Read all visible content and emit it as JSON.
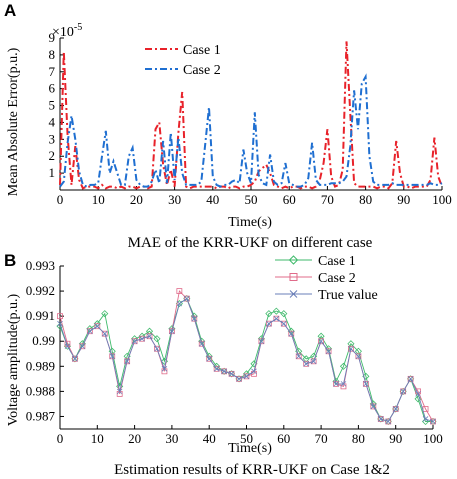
{
  "chart_data": [
    {
      "panel": "A",
      "type": "line",
      "title": "",
      "caption": "MAE of the KRR-UKF  on different case",
      "xlabel": "Time(s)",
      "ylabel": "Mean Absolute Error(p.u.)",
      "y_exponent_label": "×10",
      "y_exponent": "-5",
      "xlim": [
        0,
        100
      ],
      "ylim": [
        0,
        9
      ],
      "xticks": [
        "0",
        "10",
        "20",
        "30",
        "40",
        "50",
        "60",
        "70",
        "80",
        "90",
        "100"
      ],
      "yticks": [
        "1",
        "2",
        "3",
        "4",
        "5",
        "6",
        "7",
        "8",
        "9"
      ],
      "legend_position": "top-center",
      "series": [
        {
          "name": "Case 1",
          "color": "#e8222a",
          "style": "dash-dot",
          "x": [
            0,
            1,
            2,
            3,
            4,
            5,
            6,
            7,
            8,
            9,
            10,
            11,
            12,
            13,
            14,
            15,
            16,
            17,
            18,
            19,
            20,
            21,
            22,
            23,
            24,
            25,
            26,
            27,
            28,
            29,
            30,
            31,
            32,
            33,
            34,
            35,
            36,
            37,
            38,
            39,
            40,
            41,
            42,
            43,
            44,
            45,
            46,
            47,
            48,
            49,
            50,
            51,
            52,
            53,
            54,
            55,
            56,
            57,
            58,
            59,
            60,
            61,
            62,
            63,
            64,
            65,
            66,
            67,
            68,
            69,
            70,
            71,
            72,
            73,
            74,
            75,
            76,
            77,
            78,
            79,
            80,
            81,
            82,
            83,
            84,
            85,
            86,
            87,
            88,
            89,
            90,
            91,
            92,
            93,
            94,
            95,
            96,
            97,
            98,
            99,
            100
          ],
          "values": [
            0.3,
            8.2,
            3.2,
            0.3,
            2.6,
            0.6,
            0.1,
            0.2,
            0.2,
            0.2,
            0.1,
            0.3,
            0.1,
            0.2,
            0.2,
            0.1,
            0.2,
            0.1,
            0.2,
            0.2,
            0.1,
            0.2,
            0.2,
            0.1,
            0.2,
            3.6,
            4.0,
            1.5,
            0.3,
            1.2,
            0.2,
            3.4,
            5.8,
            0.2,
            0.1,
            0.2,
            0.2,
            0.2,
            0.2,
            0.2,
            0.2,
            0.1,
            0.2,
            0.2,
            0.1,
            0.2,
            0.2,
            0.1,
            0.2,
            0.2,
            0.3,
            0.5,
            1.1,
            1.3,
            1.5,
            1.0,
            0.3,
            0.2,
            0.1,
            0.2,
            0.1,
            0.2,
            0.2,
            0.1,
            0.2,
            0.2,
            0.1,
            0.2,
            0.6,
            1.6,
            3.6,
            0.8,
            0.2,
            0.3,
            1.2,
            8.8,
            4.5,
            0.4,
            0.2,
            0.2,
            0.2,
            0.2,
            0.2,
            0.1,
            0.2,
            0.2,
            0.1,
            0.4,
            2.9,
            1.0,
            0.2,
            0.2,
            0.1,
            0.2,
            0.2,
            0.2,
            0.2,
            0.6,
            3.1,
            0.8,
            0.2
          ]
        },
        {
          "name": "Case 2",
          "color": "#1f6fd1",
          "style": "dash-dot",
          "x": [
            0,
            1,
            2,
            3,
            4,
            5,
            6,
            7,
            8,
            9,
            10,
            11,
            12,
            13,
            14,
            15,
            16,
            17,
            18,
            19,
            20,
            21,
            22,
            23,
            24,
            25,
            26,
            27,
            28,
            29,
            30,
            31,
            32,
            33,
            34,
            35,
            36,
            37,
            38,
            39,
            40,
            41,
            42,
            43,
            44,
            45,
            46,
            47,
            48,
            49,
            50,
            51,
            52,
            53,
            54,
            55,
            56,
            57,
            58,
            59,
            60,
            61,
            62,
            63,
            64,
            65,
            66,
            67,
            68,
            69,
            70,
            71,
            72,
            73,
            74,
            75,
            76,
            77,
            78,
            79,
            80,
            81,
            82,
            83,
            84,
            85,
            86,
            87,
            88,
            89,
            90,
            91,
            92,
            93,
            94,
            95,
            96,
            97,
            98,
            99,
            100
          ],
          "values": [
            0.2,
            0.5,
            2.8,
            4.4,
            3.0,
            1.1,
            0.3,
            0.2,
            0.3,
            0.3,
            0.4,
            2.0,
            3.5,
            1.0,
            1.7,
            1.0,
            0.3,
            0.3,
            2.0,
            2.5,
            0.6,
            0.3,
            0.2,
            0.2,
            0.5,
            1.2,
            0.4,
            2.9,
            0.4,
            3.4,
            0.6,
            3.1,
            1.0,
            0.3,
            0.3,
            0.3,
            0.3,
            0.5,
            2.7,
            4.9,
            0.8,
            0.3,
            0.2,
            0.3,
            0.3,
            0.5,
            0.6,
            0.4,
            2.4,
            1.0,
            0.4,
            4.6,
            0.9,
            0.4,
            0.3,
            2.1,
            0.5,
            0.3,
            0.4,
            1.6,
            0.4,
            0.3,
            0.2,
            0.2,
            0.3,
            0.7,
            2.8,
            0.6,
            0.3,
            0.3,
            0.3,
            0.4,
            0.4,
            0.4,
            0.5,
            0.8,
            2.6,
            5.9,
            3.6,
            6.3,
            6.7,
            2.0,
            0.5,
            0.3,
            0.3,
            0.3,
            0.3,
            0.4,
            0.3,
            0.3,
            0.3,
            0.3,
            0.3,
            0.3,
            0.3,
            0.3,
            0.3,
            0.4,
            0.3,
            0.3,
            0.4
          ]
        }
      ]
    },
    {
      "panel": "B",
      "type": "line",
      "title": "",
      "caption": "Estimation results of KRR-UKF on Case 1&2",
      "xlabel": "Time(s)",
      "ylabel": "Voltage amplitude(p.u.)",
      "xlim": [
        0,
        100
      ],
      "ylim": [
        0.9865,
        0.993
      ],
      "xticks": [
        "0",
        "10",
        "20",
        "30",
        "40",
        "50",
        "60",
        "70",
        "80",
        "90",
        "100"
      ],
      "yticks": [
        "0.987",
        "0.988",
        "0.989",
        "0.99",
        "0.991",
        "0.992",
        "0.993"
      ],
      "legend_position": "top-right",
      "series": [
        {
          "name": "Case 1",
          "color": "#3fba6b",
          "marker": "diamond",
          "x": [
            0,
            2,
            4,
            6,
            8,
            10,
            12,
            14,
            16,
            18,
            20,
            22,
            24,
            26,
            28,
            30,
            32,
            34,
            36,
            38,
            40,
            42,
            44,
            46,
            48,
            50,
            52,
            54,
            56,
            58,
            60,
            62,
            64,
            66,
            68,
            70,
            72,
            74,
            76,
            78,
            80,
            82,
            84,
            86,
            88,
            90,
            92,
            94,
            96,
            98,
            100
          ],
          "values": [
            0.9906,
            0.9898,
            0.9893,
            0.9899,
            0.9905,
            0.9907,
            0.9911,
            0.9896,
            0.9882,
            0.9894,
            0.9901,
            0.9902,
            0.9904,
            0.9901,
            0.9892,
            0.9905,
            0.9915,
            0.9917,
            0.991,
            0.99,
            0.9894,
            0.989,
            0.9888,
            0.9887,
            0.9885,
            0.9887,
            0.9891,
            0.9901,
            0.9911,
            0.9912,
            0.9911,
            0.9904,
            0.9896,
            0.9893,
            0.9894,
            0.9902,
            0.9897,
            0.9884,
            0.989,
            0.9899,
            0.9896,
            0.9886,
            0.9875,
            0.9869,
            0.9868,
            0.9873,
            0.988,
            0.9885,
            0.9877,
            0.9868,
            0.9868
          ]
        },
        {
          "name": "Case 2",
          "color": "#e06b8a",
          "marker": "square",
          "x": [
            0,
            2,
            4,
            6,
            8,
            10,
            12,
            14,
            16,
            18,
            20,
            22,
            24,
            26,
            28,
            30,
            32,
            34,
            36,
            38,
            40,
            42,
            44,
            46,
            48,
            50,
            52,
            54,
            56,
            58,
            60,
            62,
            64,
            66,
            68,
            70,
            72,
            74,
            76,
            78,
            80,
            82,
            84,
            86,
            88,
            90,
            92,
            94,
            96,
            98,
            100
          ],
          "values": [
            0.991,
            0.9899,
            0.9893,
            0.9898,
            0.9904,
            0.9906,
            0.9903,
            0.9894,
            0.9879,
            0.9892,
            0.99,
            0.9901,
            0.9902,
            0.9897,
            0.9888,
            0.9904,
            0.992,
            0.9917,
            0.9909,
            0.9899,
            0.9893,
            0.9889,
            0.9888,
            0.9887,
            0.9885,
            0.9886,
            0.9887,
            0.99,
            0.9907,
            0.9909,
            0.9907,
            0.9903,
            0.9894,
            0.9891,
            0.9892,
            0.99,
            0.9896,
            0.9883,
            0.9882,
            0.9897,
            0.9894,
            0.9883,
            0.9874,
            0.9869,
            0.9868,
            0.9873,
            0.988,
            0.9885,
            0.988,
            0.9873,
            0.9868
          ]
        },
        {
          "name": "True value",
          "color": "#6a7fb8",
          "marker": "x",
          "x": [
            0,
            2,
            4,
            6,
            8,
            10,
            12,
            14,
            16,
            18,
            20,
            22,
            24,
            26,
            28,
            30,
            32,
            34,
            36,
            38,
            40,
            42,
            44,
            46,
            48,
            50,
            52,
            54,
            56,
            58,
            60,
            62,
            64,
            66,
            68,
            70,
            72,
            74,
            76,
            78,
            80,
            82,
            84,
            86,
            88,
            90,
            92,
            94,
            96,
            98,
            100
          ],
          "values": [
            0.9907,
            0.9898,
            0.9893,
            0.9898,
            0.9904,
            0.9906,
            0.9903,
            0.9894,
            0.988,
            0.9892,
            0.99,
            0.9901,
            0.9902,
            0.9897,
            0.9889,
            0.9904,
            0.9915,
            0.9917,
            0.9909,
            0.9899,
            0.9893,
            0.9889,
            0.9888,
            0.9887,
            0.9885,
            0.9886,
            0.9888,
            0.99,
            0.9907,
            0.9909,
            0.9907,
            0.9903,
            0.9894,
            0.9891,
            0.9892,
            0.99,
            0.9896,
            0.9883,
            0.9883,
            0.9897,
            0.9894,
            0.9883,
            0.9874,
            0.9869,
            0.9868,
            0.9873,
            0.988,
            0.9885,
            0.9879,
            0.9869,
            0.9868
          ]
        }
      ]
    }
  ]
}
